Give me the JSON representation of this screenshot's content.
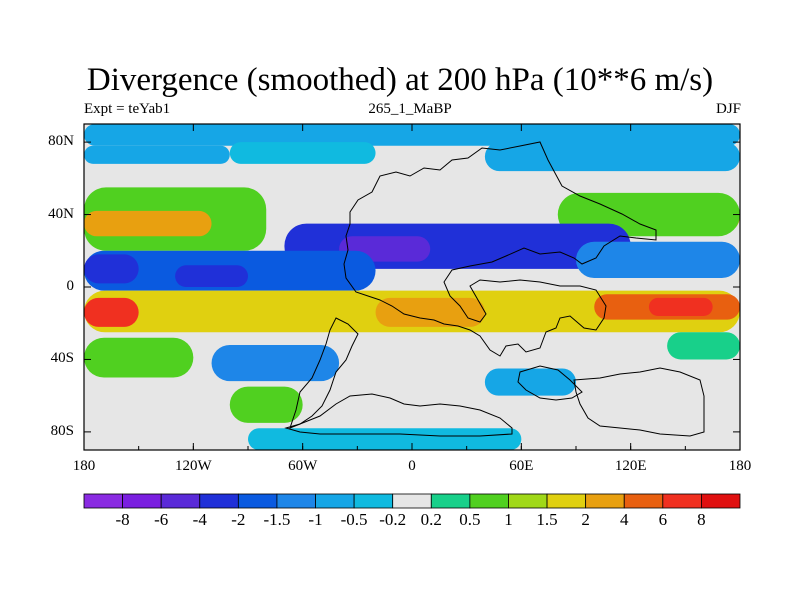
{
  "chart_data": {
    "type": "heatmap",
    "title": "Divergence (smoothed) at 200 hPa (10**6 m/s)",
    "left_label": "Expt = teYab1",
    "center_label": "265_1_MaBP",
    "right_label": "DJF",
    "x_range": [
      -180,
      180
    ],
    "y_range": [
      -90,
      90
    ],
    "x_ticks": [
      {
        "value": -180,
        "label": "180"
      },
      {
        "value": -120,
        "label": "120W"
      },
      {
        "value": -60,
        "label": "60W"
      },
      {
        "value": 0,
        "label": "0"
      },
      {
        "value": 60,
        "label": "60E"
      },
      {
        "value": 120,
        "label": "120E"
      },
      {
        "value": 180,
        "label": "180"
      }
    ],
    "y_ticks": [
      {
        "value": 80,
        "label": "80N"
      },
      {
        "value": 40,
        "label": "40N"
      },
      {
        "value": 0,
        "label": "0"
      },
      {
        "value": -40,
        "label": "40S"
      },
      {
        "value": -80,
        "label": "80S"
      }
    ],
    "colorbar": {
      "levels": [
        "-8",
        "-6",
        "-4",
        "-2",
        "-1.5",
        "-1",
        "-0.5",
        "-0.2",
        "0.2",
        "0.5",
        "1",
        "1.5",
        "2",
        "4",
        "6",
        "8"
      ],
      "colors": [
        "#8a2be2",
        "#7a1fe0",
        "#5a2ad8",
        "#2030d8",
        "#0a5ae0",
        "#1e86e8",
        "#16a6e6",
        "#10bae0",
        "#e6e6e6",
        "#18d08a",
        "#50d020",
        "#a0d818",
        "#e0d010",
        "#e8a010",
        "#e86010",
        "#f03020",
        "#e01010"
      ]
    },
    "bands": [
      {
        "lat": [
          78,
          90
        ],
        "lon": [
          -180,
          180
        ],
        "level": 6
      },
      {
        "lat": [
          68,
          78
        ],
        "lon": [
          -180,
          -100
        ],
        "level": 6
      },
      {
        "lat": [
          68,
          80
        ],
        "lon": [
          -100,
          -20
        ],
        "level": 7
      },
      {
        "lat": [
          64,
          80
        ],
        "lon": [
          40,
          180
        ],
        "level": 6
      },
      {
        "lat": [
          20,
          55
        ],
        "lon": [
          -180,
          -80
        ],
        "level": 10
      },
      {
        "lat": [
          28,
          42
        ],
        "lon": [
          -180,
          -110
        ],
        "level": 13
      },
      {
        "lat": [
          30,
          48
        ],
        "lon": [
          130,
          180
        ],
        "level": 13
      },
      {
        "lat": [
          28,
          52
        ],
        "lon": [
          80,
          180
        ],
        "level": 10
      },
      {
        "lat": [
          10,
          35
        ],
        "lon": [
          -70,
          120
        ],
        "level": 3
      },
      {
        "lat": [
          14,
          28
        ],
        "lon": [
          -40,
          10
        ],
        "level": 2
      },
      {
        "lat": [
          -2,
          20
        ],
        "lon": [
          -180,
          -20
        ],
        "level": 4
      },
      {
        "lat": [
          2,
          18
        ],
        "lon": [
          -180,
          -150
        ],
        "level": 3
      },
      {
        "lat": [
          0,
          12
        ],
        "lon": [
          -130,
          -90
        ],
        "level": 3
      },
      {
        "lat": [
          5,
          25
        ],
        "lon": [
          90,
          180
        ],
        "level": 5
      },
      {
        "lat": [
          -25,
          -2
        ],
        "lon": [
          -180,
          180
        ],
        "level": 12
      },
      {
        "lat": [
          -18,
          -4
        ],
        "lon": [
          100,
          180
        ],
        "level": 14
      },
      {
        "lat": [
          -16,
          -6
        ],
        "lon": [
          130,
          165
        ],
        "level": 15
      },
      {
        "lat": [
          -22,
          -6
        ],
        "lon": [
          -180,
          -150
        ],
        "level": 15
      },
      {
        "lat": [
          -22,
          -6
        ],
        "lon": [
          -20,
          40
        ],
        "level": 13
      },
      {
        "lat": [
          -50,
          -28
        ],
        "lon": [
          -180,
          -120
        ],
        "level": 10
      },
      {
        "lat": [
          -52,
          -32
        ],
        "lon": [
          -110,
          -40
        ],
        "level": 5
      },
      {
        "lat": [
          -40,
          -25
        ],
        "lon": [
          140,
          180
        ],
        "level": 9
      },
      {
        "lat": [
          -75,
          -55
        ],
        "lon": [
          -100,
          -60
        ],
        "level": 10
      },
      {
        "lat": [
          -60,
          -45
        ],
        "lon": [
          40,
          90
        ],
        "level": 6
      },
      {
        "lat": [
          -90,
          -78
        ],
        "lon": [
          -90,
          60
        ],
        "level": 7
      }
    ]
  }
}
